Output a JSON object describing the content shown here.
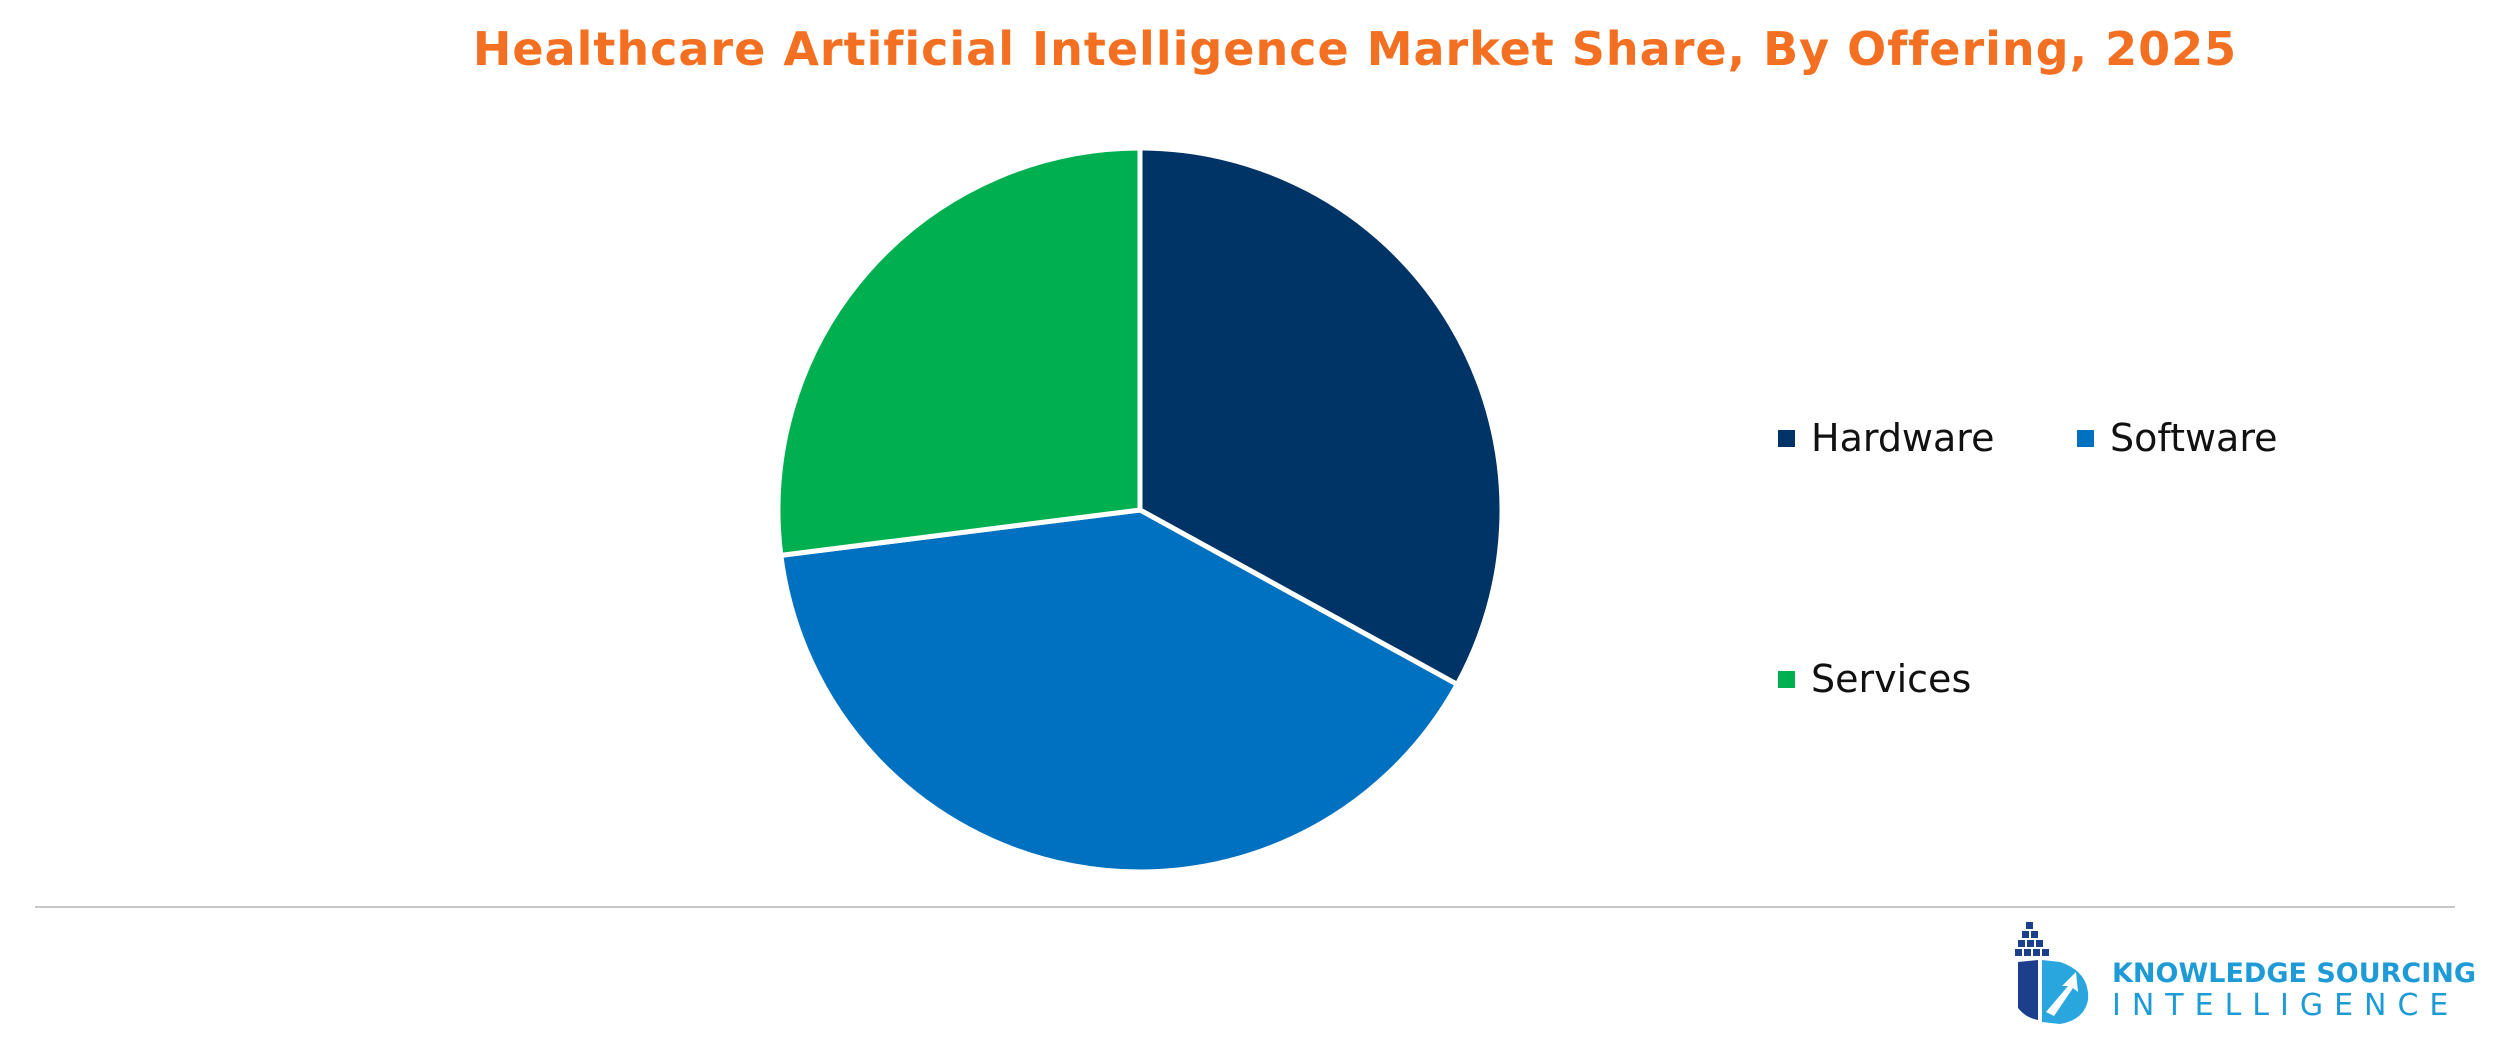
{
  "colors": {
    "title": "#f36f21",
    "hardware": "#003366",
    "software": "#0070c0",
    "services": "#00b050",
    "slice_border": "#ffffff",
    "brand_text": "#1e9bd7",
    "brand_emblem_dark": "#1b3f8b",
    "brand_emblem_light": "#2aa6de"
  },
  "chart_data": {
    "type": "pie",
    "title": "Healthcare Artificial Intelligence Market Share, By Offering, 2025",
    "categories": [
      "Hardware",
      "Software",
      "Services"
    ],
    "values": [
      33,
      40,
      27
    ],
    "start_angle_deg": 0,
    "direction": "clockwise",
    "legend_position": "right"
  },
  "legend": {
    "items": [
      {
        "label": "Hardware",
        "color": "#003366"
      },
      {
        "label": "Software",
        "color": "#0070c0"
      },
      {
        "label": "Services",
        "color": "#00b050"
      }
    ]
  },
  "brand": {
    "line1": "KNOWLEDGE SOURCING",
    "line2": "INTELLIGENCE",
    "logo_icon": "building-growth-emblem-icon"
  }
}
